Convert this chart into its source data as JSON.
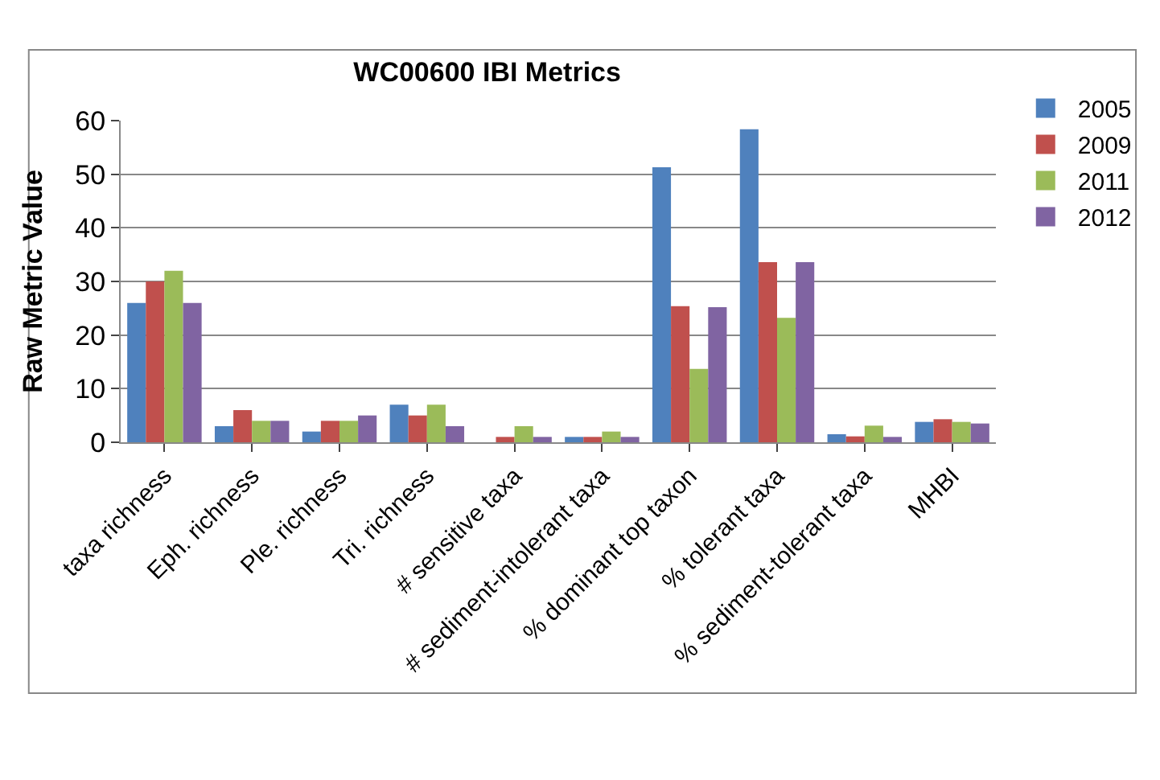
{
  "chart_data": {
    "type": "bar",
    "title": "WC00600 IBI Metrics",
    "ylabel": "Raw Metric Value",
    "categories": [
      "taxa richness",
      "Eph. richness",
      "Ple. richness",
      "Tri. richness",
      "# sensitive taxa",
      "# sediment-intolerant taxa",
      "% dominant top taxon",
      "% tolerant taxa",
      "% sediment-tolerant taxa",
      "MHBI"
    ],
    "series": [
      {
        "name": "2005",
        "color": "#4f81bd",
        "values": [
          26,
          3,
          2,
          7,
          0,
          1,
          51.3,
          58.4,
          1.5,
          3.8
        ]
      },
      {
        "name": "2009",
        "color": "#c0504d",
        "values": [
          30,
          6,
          4,
          5,
          1,
          1,
          25.4,
          33.6,
          1.1,
          4.3
        ]
      },
      {
        "name": "2011",
        "color": "#9bbb59",
        "values": [
          32,
          4,
          4,
          7,
          3,
          2,
          13.7,
          23.2,
          3.1,
          3.8
        ]
      },
      {
        "name": "2012",
        "color": "#8064a2",
        "values": [
          26,
          4,
          5,
          3,
          1,
          1,
          25.2,
          33.6,
          1.0,
          3.5
        ]
      }
    ],
    "ylim": [
      0,
      60
    ],
    "yticks": [
      0,
      10,
      20,
      30,
      40,
      50,
      60
    ],
    "grid": "y",
    "legend": "top right"
  }
}
